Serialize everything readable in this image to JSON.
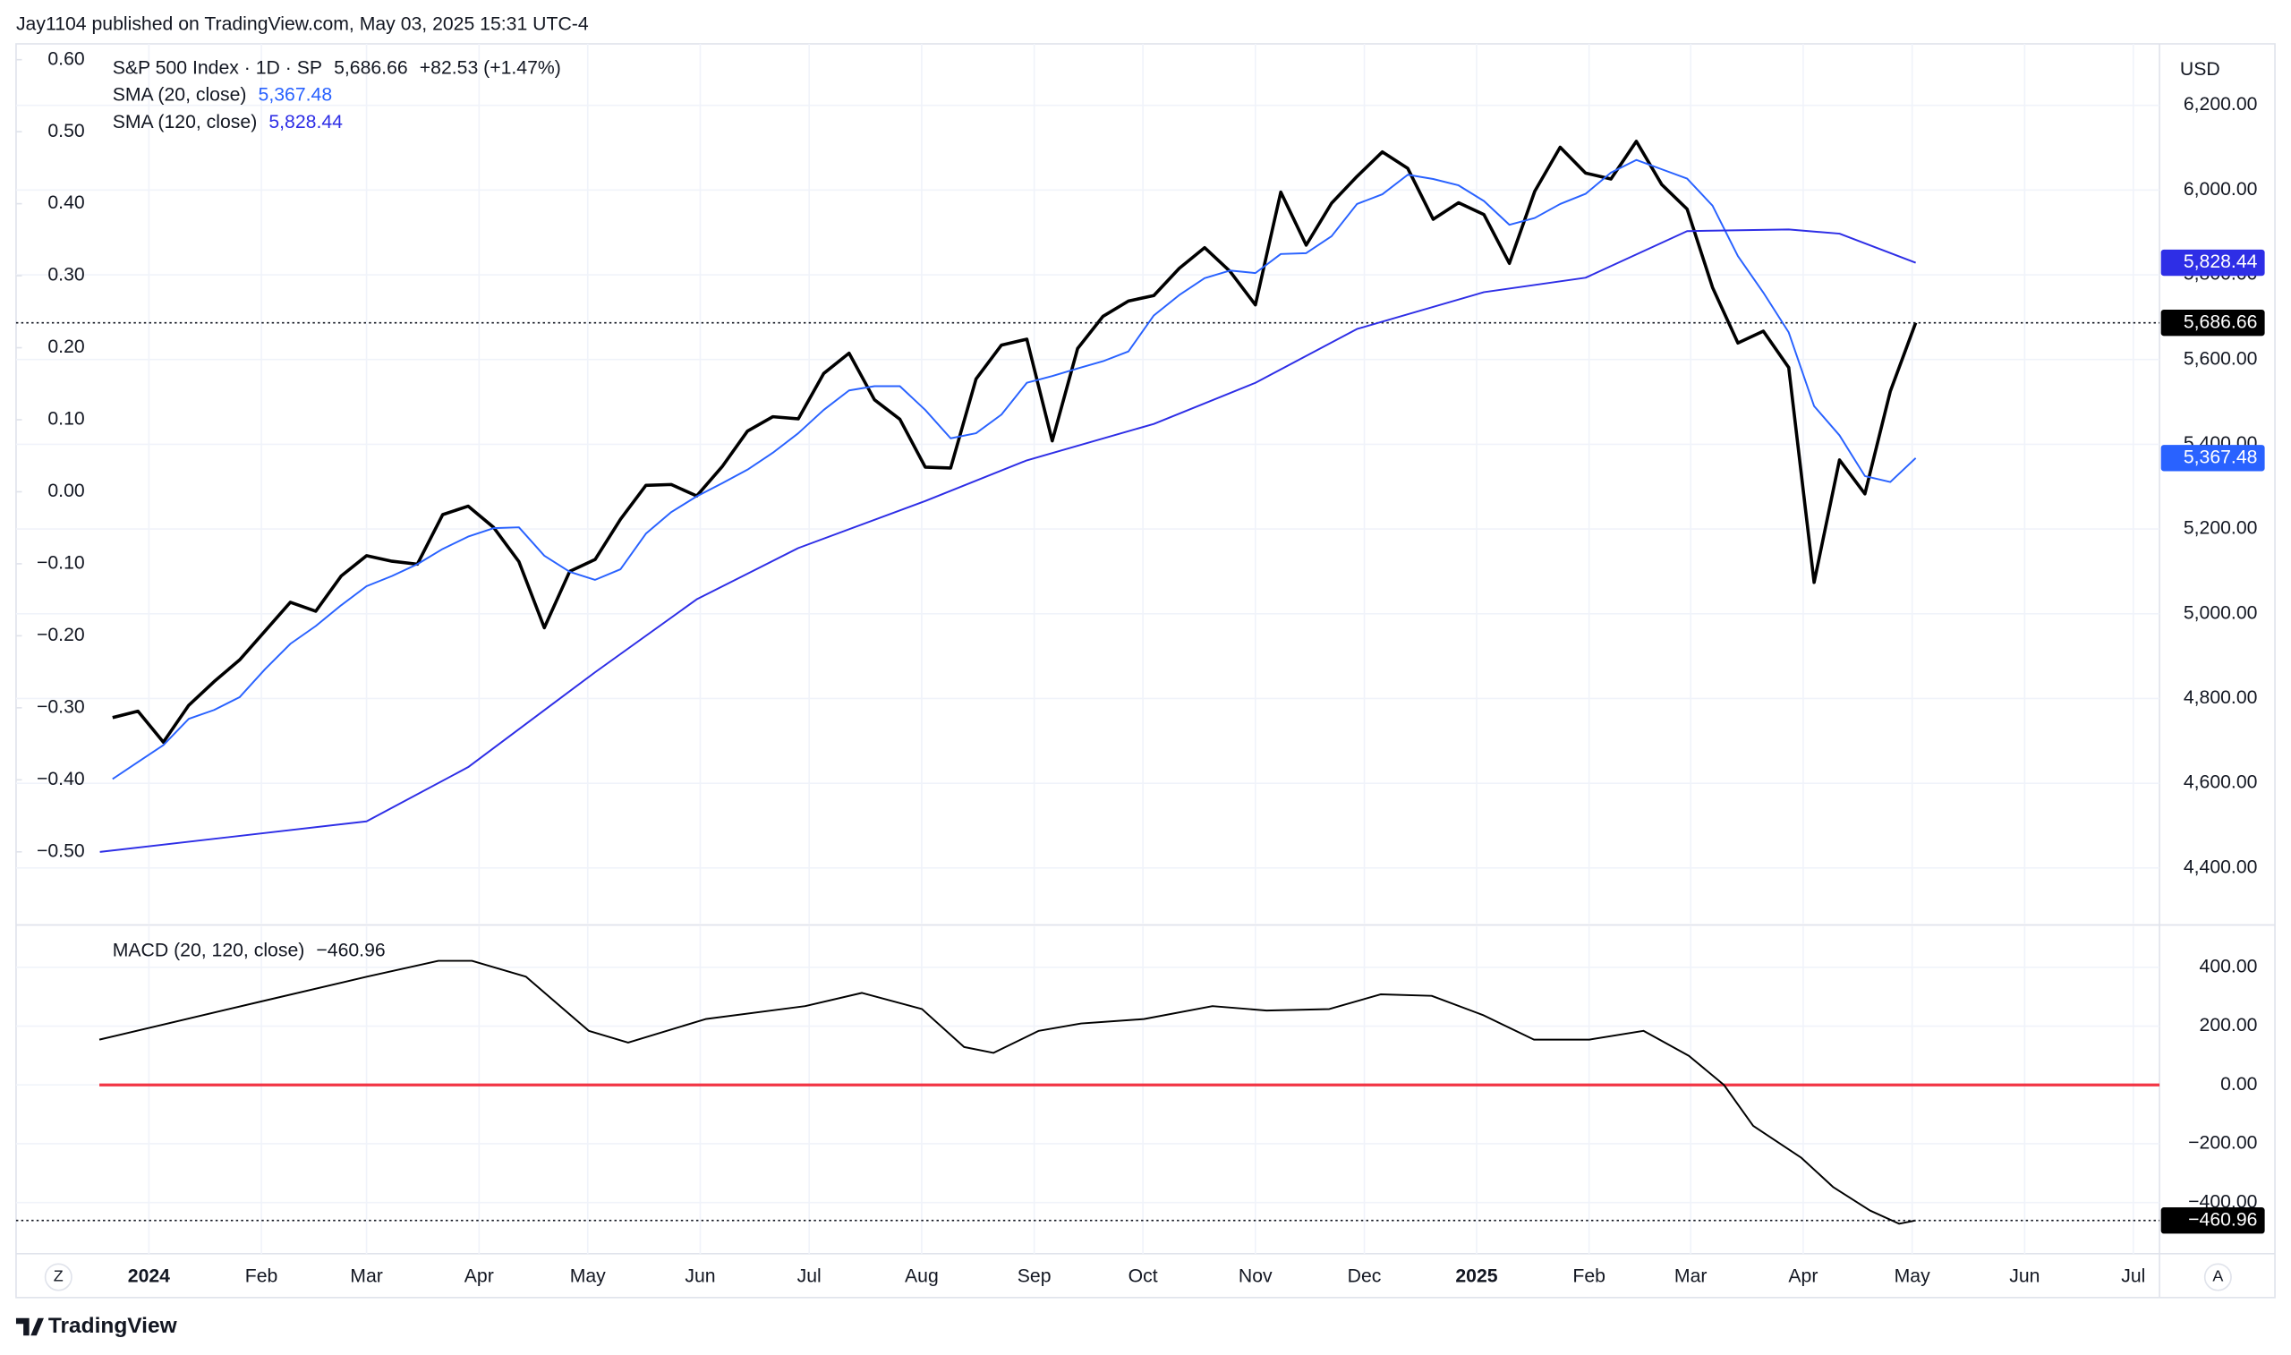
{
  "header": {
    "published": "Jay1104 published on TradingView.com, May 03, 2025 15:31 UTC-4"
  },
  "controls": {
    "left": "Z",
    "right": "A"
  },
  "footer": {
    "brand": "TradingView"
  },
  "chart_data": [
    {
      "type": "line",
      "currency": "USD",
      "xlim": [
        -3.8,
        80.6
      ],
      "xticks": [
        {
          "value": 1.43,
          "label": "2024"
        },
        {
          "value": 5.86,
          "label": "Feb"
        },
        {
          "value": 10.0,
          "label": "Mar"
        },
        {
          "value": 14.43,
          "label": "Apr"
        },
        {
          "value": 18.71,
          "label": "May"
        },
        {
          "value": 23.14,
          "label": "Jun"
        },
        {
          "value": 27.43,
          "label": "Jul"
        },
        {
          "value": 31.86,
          "label": "Aug"
        },
        {
          "value": 36.29,
          "label": "Sep"
        },
        {
          "value": 40.57,
          "label": "Oct"
        },
        {
          "value": 45.0,
          "label": "Nov"
        },
        {
          "value": 49.29,
          "label": "Dec"
        },
        {
          "value": 53.71,
          "label": "2025"
        },
        {
          "value": 58.14,
          "label": "Feb"
        },
        {
          "value": 62.14,
          "label": "Mar"
        },
        {
          "value": 66.57,
          "label": "Apr"
        },
        {
          "value": 70.86,
          "label": "May"
        },
        {
          "value": 75.29,
          "label": "Jun"
        },
        {
          "value": 79.57,
          "label": "Jul"
        }
      ],
      "ylim": [
        4269,
        6345
      ],
      "yticks": [
        {
          "value": 4400,
          "label": "4,400.00"
        },
        {
          "value": 4600,
          "label": "4,600.00"
        },
        {
          "value": 4800,
          "label": "4,800.00"
        },
        {
          "value": 5000,
          "label": "5,000.00"
        },
        {
          "value": 5200,
          "label": "5,200.00"
        },
        {
          "value": 5400,
          "label": "5,400.00"
        },
        {
          "value": 5600,
          "label": "5,600.00"
        },
        {
          "value": 5800,
          "label": "5,800.00"
        },
        {
          "value": 6000,
          "label": "6,000.00"
        },
        {
          "value": 6200,
          "label": "6,200.00"
        }
      ],
      "y2lim": [
        -0.5995,
        0.622
      ],
      "y2ticks": [
        {
          "value": 0.6,
          "label": "0.60"
        },
        {
          "value": 0.5,
          "label": "0.50"
        },
        {
          "value": 0.4,
          "label": "0.40"
        },
        {
          "value": 0.3,
          "label": "0.30"
        },
        {
          "value": 0.2,
          "label": "0.20"
        },
        {
          "value": 0.1,
          "label": "0.10"
        },
        {
          "value": 0,
          "label": "0.00"
        },
        {
          "value": -0.1,
          "label": "−0.10"
        },
        {
          "value": -0.2,
          "label": "−0.20"
        },
        {
          "value": -0.3,
          "label": "−0.30"
        },
        {
          "value": -0.4,
          "label": "−0.40"
        },
        {
          "value": -0.5,
          "label": "−0.50"
        }
      ],
      "grid": true,
      "x": [
        0,
        1,
        2,
        3,
        4,
        5,
        6,
        7,
        8,
        9,
        10,
        11,
        12,
        13,
        14,
        15,
        16,
        17,
        18,
        19,
        20,
        21,
        22,
        23,
        24,
        25,
        26,
        27,
        28,
        29,
        30,
        31,
        32,
        33,
        34,
        35,
        36,
        37,
        38,
        39,
        40,
        41,
        42,
        43,
        44,
        45,
        46,
        47,
        48,
        49,
        50,
        51,
        52,
        53,
        54,
        55,
        56,
        57,
        58,
        59,
        60,
        61,
        62,
        63,
        64,
        65,
        66,
        67,
        68,
        69,
        70,
        71
      ],
      "series": [
        {
          "name": "S&P 500 Index · 1D · SP",
          "color": "#000000",
          "values": [
            4755,
            4770,
            4697,
            4784,
            4840,
            4891,
            4959,
            5027,
            5006,
            5089,
            5137,
            5124,
            5117,
            5234,
            5254,
            5204,
            5123,
            4967,
            5100,
            5128,
            5223,
            5303,
            5305,
            5278,
            5347,
            5431,
            5465,
            5460,
            5567,
            5615,
            5505,
            5459,
            5346,
            5344,
            5554,
            5634,
            5648,
            5408,
            5626,
            5702,
            5738,
            5751,
            5815,
            5864,
            5808,
            5729,
            5995,
            5870,
            5969,
            6032,
            6090,
            6051,
            5931,
            5970,
            5942,
            5827,
            5997,
            6101,
            6040,
            6026,
            6115,
            6013,
            5955,
            5770,
            5639,
            5667,
            5581,
            5074,
            5363,
            5283,
            5525,
            5686.66
          ],
          "last_label": "5,686.66",
          "change_label": "+82.53 (+1.47%)"
        },
        {
          "name": "SMA (20, close)",
          "color": "#2962ff",
          "values": [
            4610,
            4650,
            4690,
            4752,
            4773,
            4803,
            4869,
            4929,
            4971,
            5020,
            5065,
            5089,
            5117,
            5153,
            5182,
            5202,
            5204,
            5137,
            5099,
            5080,
            5105,
            5189,
            5240,
            5277,
            5308,
            5340,
            5380,
            5426,
            5481,
            5527,
            5537,
            5537,
            5481,
            5414,
            5426,
            5470,
            5545,
            5561,
            5579,
            5596,
            5619,
            5704,
            5752,
            5792,
            5810,
            5804,
            5849,
            5851,
            5891,
            5967,
            5990,
            6036,
            6026,
            6011,
            5974,
            5918,
            5934,
            5967,
            5991,
            6041,
            6071,
            6049,
            6027,
            5963,
            5844,
            5758,
            5664,
            5490,
            5421,
            5325,
            5311,
            5367.48
          ],
          "last_label": "5,367.48"
        },
        {
          "name": "SMA (120, close)",
          "color": "#2e2ee6",
          "x": [
            -0.5,
            10,
            14,
            19,
            23,
            27,
            32,
            36,
            41,
            45,
            49,
            54,
            58,
            62,
            66,
            68,
            71
          ],
          "values": [
            4438,
            4510,
            4638,
            4862,
            5034,
            5155,
            5266,
            5362,
            5448,
            5545,
            5672,
            5759,
            5793,
            5903,
            5907,
            5897,
            5828.44
          ],
          "last_label": "5,828.44"
        }
      ]
    },
    {
      "type": "line",
      "xlim": [
        -3.8,
        80.6
      ],
      "ylim": [
        -574,
        539
      ],
      "yticks": [
        {
          "value": 400,
          "label": "400.00"
        },
        {
          "value": 200,
          "label": "200.00"
        },
        {
          "value": 0,
          "label": "0.00"
        },
        {
          "value": -200,
          "label": "−200.00"
        },
        {
          "value": -400,
          "label": "−400.00"
        }
      ],
      "hline": {
        "value": 0,
        "color": "#f23645"
      },
      "series": [
        {
          "name": "MACD (20, 120, close)",
          "color": "#000000",
          "x": [
            -0.52,
            5.81,
            10.01,
            12.83,
            14.15,
            16.28,
            18.75,
            20.3,
            23.35,
            27.27,
            29.51,
            31.87,
            33.53,
            34.69,
            36.47,
            38.14,
            40.61,
            43.31,
            45.44,
            47.91,
            49.93,
            51.94,
            53.95,
            55.97,
            58.15,
            60.28,
            62.07,
            63.45,
            64.6,
            66.5,
            67.76,
            69.2,
            70.35,
            71
          ],
          "values": [
            154,
            283,
            368,
            422,
            422,
            368,
            184,
            144,
            224,
            268,
            313,
            258,
            129,
            109,
            184,
            209,
            224,
            268,
            253,
            258,
            308,
            303,
            238,
            154,
            154,
            184,
            99,
            0,
            -139,
            -248,
            -348,
            -427,
            -472,
            -460.96
          ],
          "last_label": "−460.96"
        }
      ]
    }
  ]
}
